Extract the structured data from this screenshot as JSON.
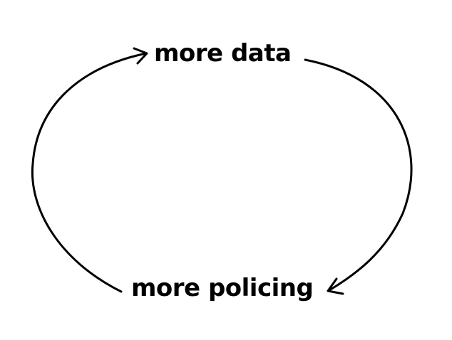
{
  "diagram": {
    "nodes": [
      {
        "id": "top",
        "label": "more data"
      },
      {
        "id": "bottom",
        "label": "more policing"
      }
    ],
    "edges": [
      {
        "from": "top",
        "to": "bottom",
        "direction": "clockwise"
      },
      {
        "from": "bottom",
        "to": "top",
        "direction": "clockwise"
      }
    ],
    "colors": {
      "stroke": "#000000",
      "text": "#000000",
      "background": "#ffffff"
    }
  }
}
